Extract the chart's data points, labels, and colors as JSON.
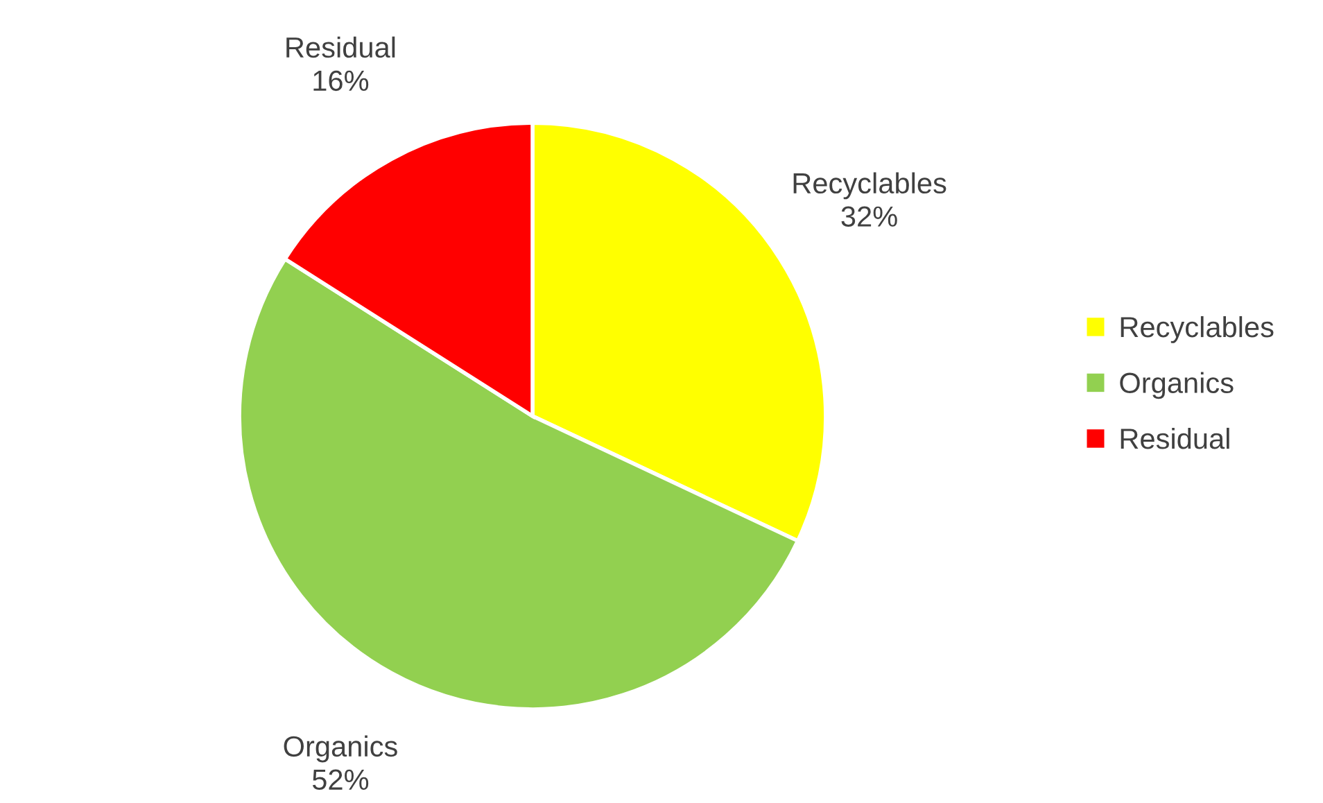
{
  "chart_data": {
    "type": "pie",
    "categories": [
      "Recyclables",
      "Organics",
      "Residual"
    ],
    "values": [
      32,
      52,
      16
    ],
    "colors": [
      "#ffff00",
      "#92d050",
      "#ff0000"
    ],
    "value_labels": [
      "32%",
      "52%",
      "16%"
    ],
    "legend": "right"
  }
}
